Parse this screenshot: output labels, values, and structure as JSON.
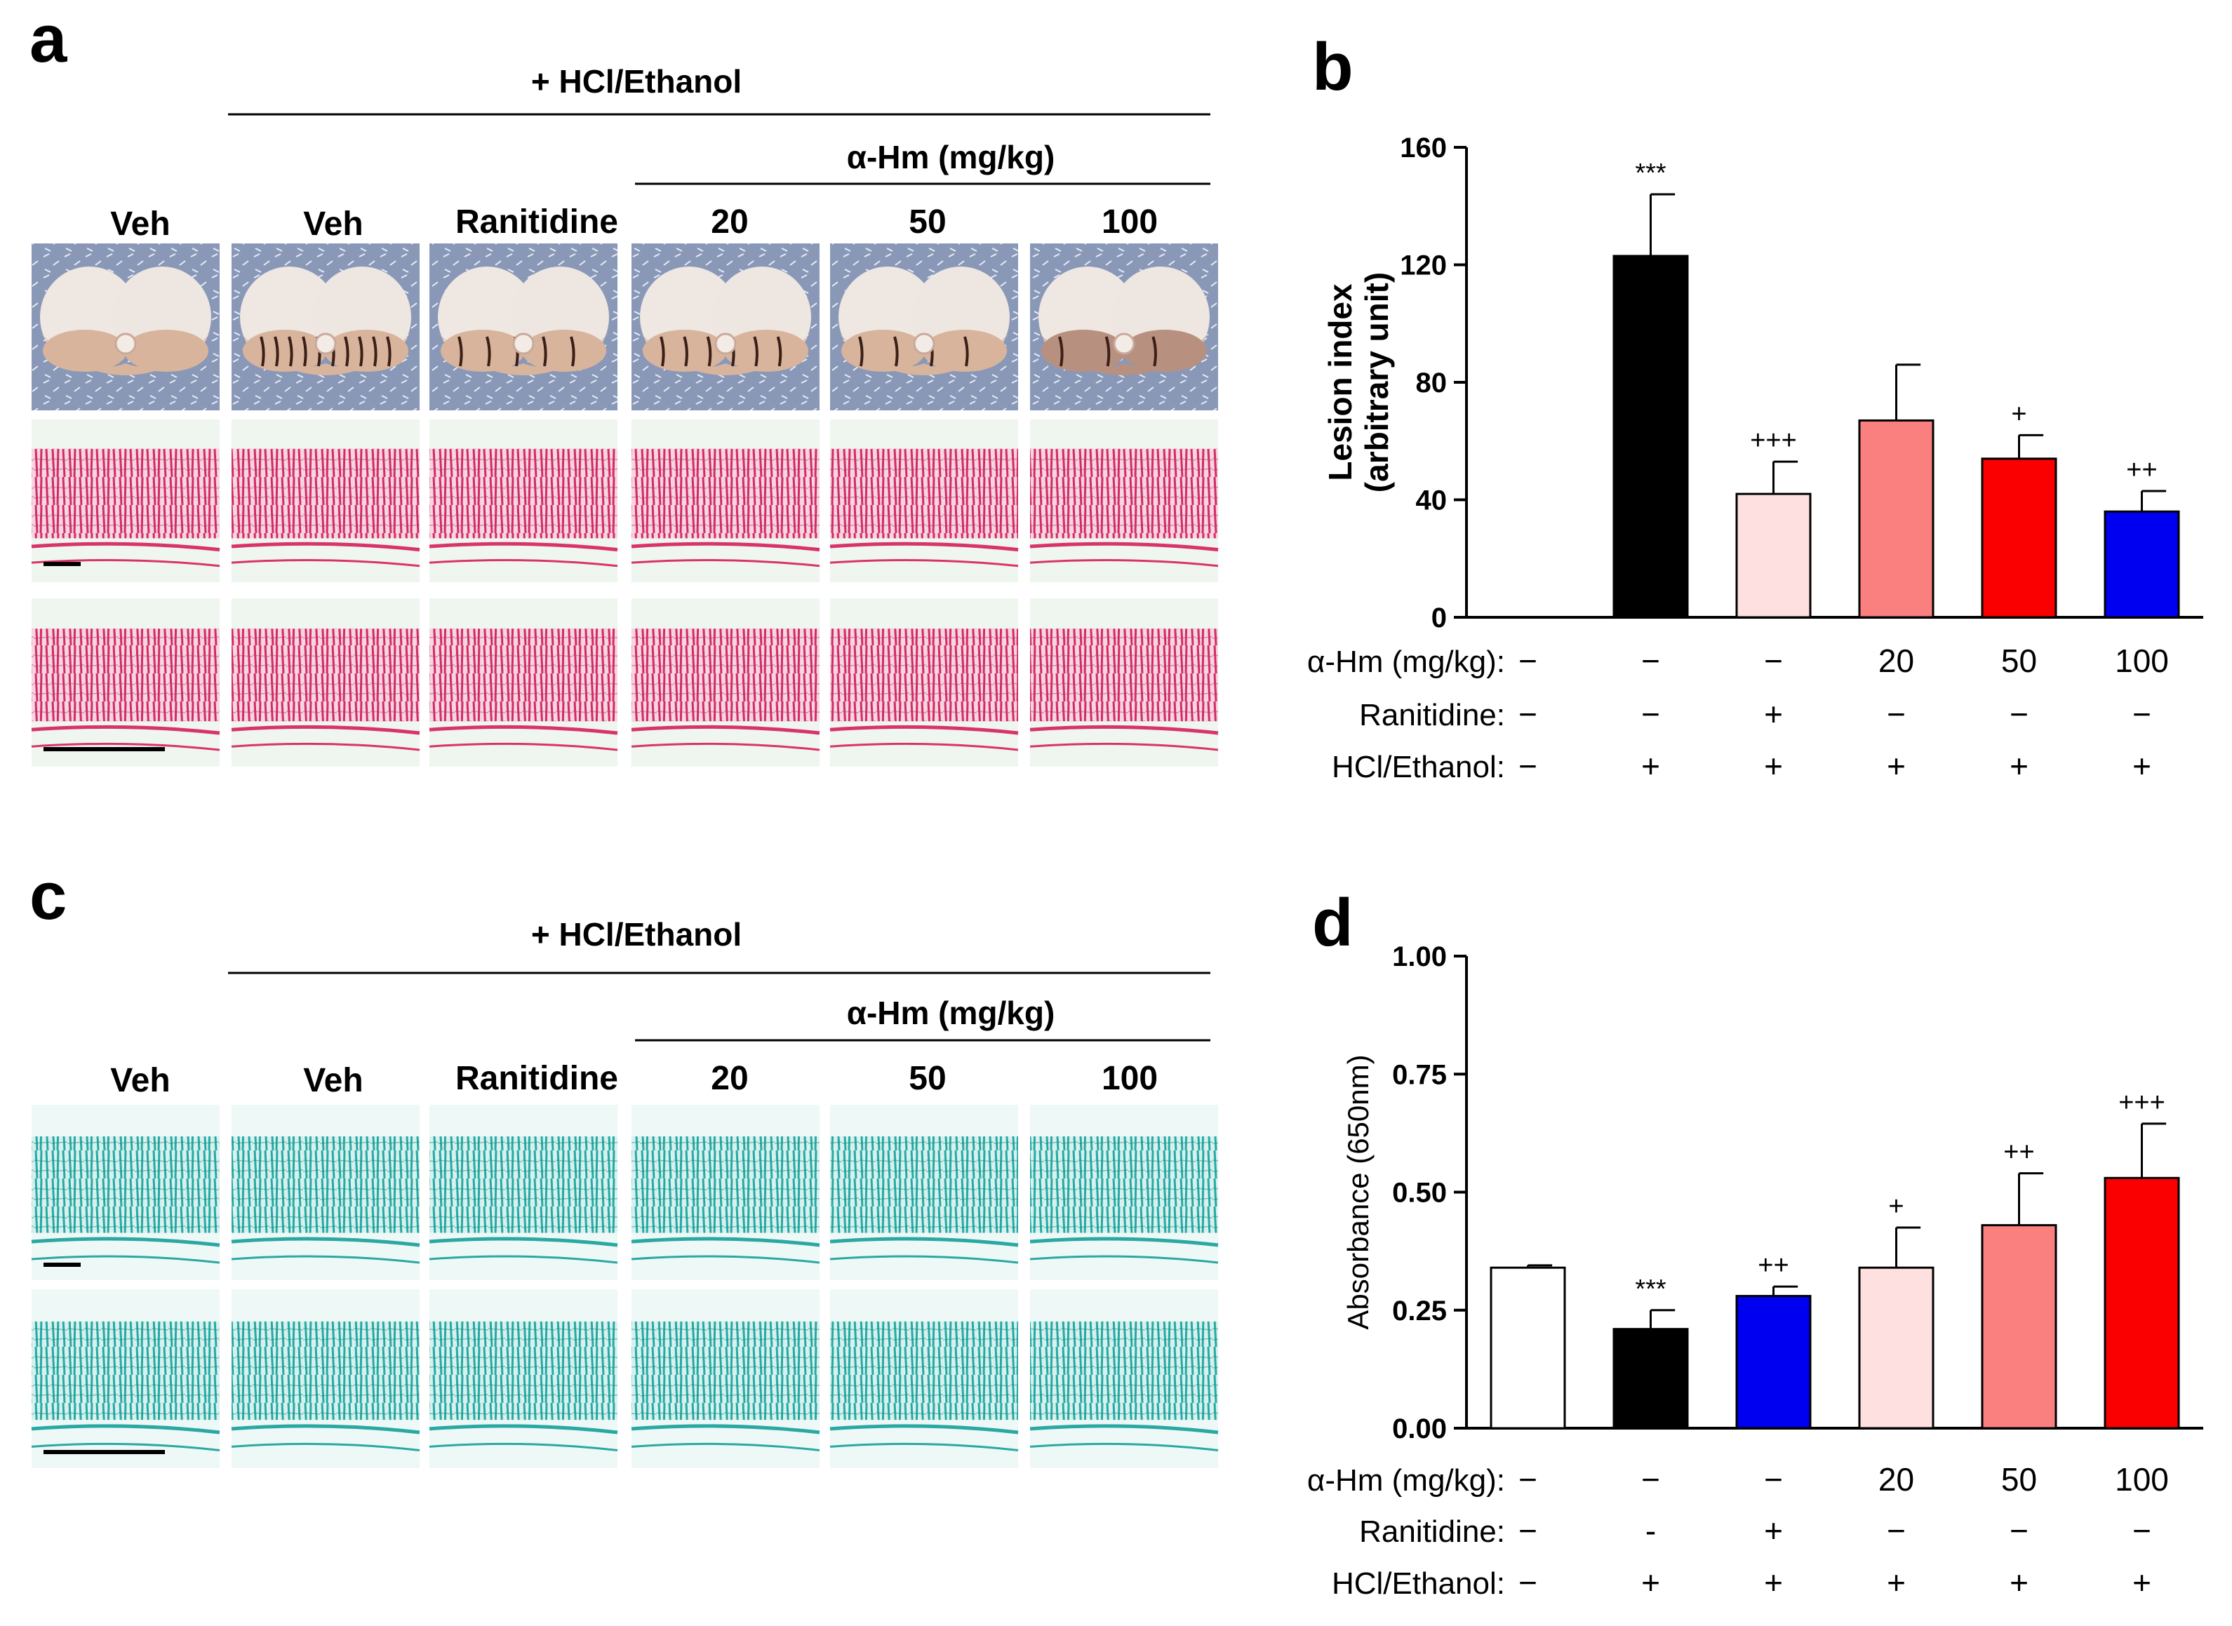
{
  "panels": {
    "a": {
      "letter": "a",
      "treatment_header": "+  HCl/Ethanol",
      "dose_header": "α-Hm  (mg/kg)",
      "columns": [
        "Veh",
        "Veh",
        "Ranitidine",
        "20",
        "50",
        "100"
      ]
    },
    "c": {
      "letter": "c",
      "treatment_header": "+  HCl/Ethanol",
      "dose_header": "α-Hm  (mg/kg)",
      "columns": [
        "Veh",
        "Veh",
        "Ranitidine",
        "20",
        "50",
        "100"
      ]
    }
  },
  "colors": {
    "black": "#000000",
    "light_pink": "#ffe0e0",
    "salmon": "#fa8080",
    "red": "#fa0000",
    "blue": "#0000f0",
    "white": "#ffffff",
    "stomach_bg": "#7f8fb0",
    "he_pink": "#e0306a",
    "ab_teal": "#2ab8b0"
  },
  "chart_data": [
    {
      "panel": "b",
      "type": "bar",
      "letter": "b",
      "ylabel_line1": "Lesion index",
      "ylabel_line2": "(arbitrary unit)",
      "ylim": [
        0,
        160
      ],
      "yticks": [
        "0",
        "40",
        "80",
        "120",
        "160"
      ],
      "ytick_values": [
        0,
        40,
        80,
        120,
        160
      ],
      "values": [
        0,
        123,
        42,
        67,
        54,
        36
      ],
      "errors": [
        0,
        21,
        11,
        19,
        8,
        7
      ],
      "bar_colors": [
        "#ffffff",
        "#000000",
        "#ffe0e0",
        "#fa8080",
        "#fa0000",
        "#0000f0"
      ],
      "annotations": [
        "",
        "***",
        "+++",
        "",
        "+",
        "++"
      ],
      "condition_labels": [
        "α-Hm (mg/kg):",
        "Ranitidine:",
        "HCl/Ethanol:"
      ],
      "conditions": [
        [
          "−",
          "−",
          "−",
          "20",
          "50",
          "100"
        ],
        [
          "−",
          "−",
          "+",
          "−",
          "−",
          "−"
        ],
        [
          "−",
          "+",
          "+",
          "+",
          "+",
          "+"
        ]
      ]
    },
    {
      "panel": "d",
      "type": "bar",
      "letter": "d",
      "ylabel_line1": "Absorbance (650nm)",
      "ylim": [
        0,
        1
      ],
      "yticks": [
        "0.00",
        "0.25",
        "0.50",
        "0.75",
        "1.00"
      ],
      "ytick_values": [
        0,
        0.25,
        0.5,
        0.75,
        1.0
      ],
      "values": [
        0.34,
        0.21,
        0.28,
        0.34,
        0.43,
        0.53
      ],
      "errors": [
        0.005,
        0.04,
        0.02,
        0.085,
        0.11,
        0.115
      ],
      "bar_colors": [
        "#ffffff",
        "#000000",
        "#0000f0",
        "#ffe0e0",
        "#fa8080",
        "#fa0000"
      ],
      "annotations": [
        "",
        "***",
        "++",
        "+",
        "++",
        "+++"
      ],
      "condition_labels": [
        "α-Hm (mg/kg):",
        "Ranitidine:",
        "HCl/Ethanol:"
      ],
      "conditions": [
        [
          "−",
          "−",
          "−",
          "20",
          "50",
          "100"
        ],
        [
          "−",
          "-",
          "+",
          "−",
          "−",
          "−"
        ],
        [
          "−",
          "+",
          "+",
          "+",
          "+",
          "+"
        ]
      ]
    }
  ]
}
